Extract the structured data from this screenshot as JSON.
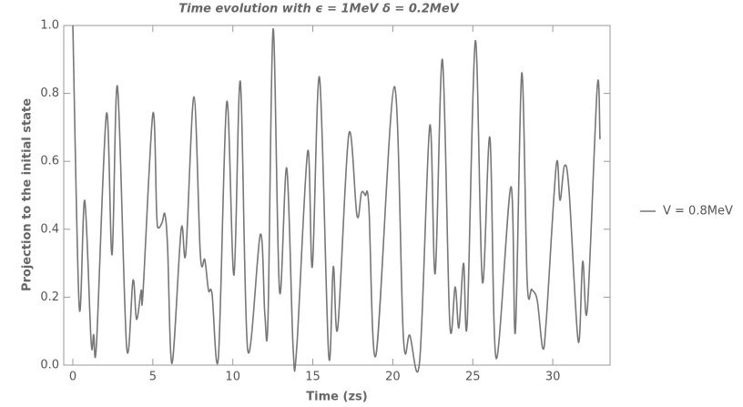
{
  "chart_data": {
    "type": "line",
    "title": "Time evolution with ϵ = 1MeV δ = 0.2MeV",
    "x_label": "Time (zs)",
    "y_label": "Projection to the initial state",
    "x": [
      0,
      0.4,
      0.74,
      1.14,
      1.3,
      1.48,
      2.1,
      2.45,
      2.79,
      3.36,
      3.76,
      3.98,
      4.27,
      4.38,
      5.0,
      5.24,
      5.35,
      5.58,
      5.75,
      5.92,
      6.2,
      6.77,
      7.06,
      7.57,
      7.97,
      8.25,
      8.48,
      8.7,
      9.1,
      9.62,
      10.07,
      10.47,
      10.93,
      11.72,
      12.0,
      12.2,
      12.52,
      12.92,
      13.37,
      13.77,
      14.0,
      14.68,
      14.97,
      15.42,
      15.99,
      16.28,
      16.56,
      17.25,
      17.76,
      18.04,
      18.27,
      18.5,
      18.95,
      20.09,
      20.66,
      21.06,
      21.68,
      22.31,
      22.65,
      23.1,
      23.56,
      23.9,
      24.13,
      24.42,
      24.65,
      25.16,
      25.6,
      26.07,
      26.46,
      27.38,
      27.66,
      28.06,
      28.4,
      28.69,
      29.03,
      29.37,
      29.6,
      30.22,
      30.45,
      30.73,
      31.02,
      31.59,
      31.87,
      32.16,
      32.78,
      32.95
    ],
    "series": [
      {
        "name": "V = 0.8MeV",
        "color": "#777777",
        "values": [
          1.0,
          0.17,
          0.485,
          0.07,
          0.09,
          0.065,
          0.74,
          0.325,
          0.82,
          0.055,
          0.25,
          0.135,
          0.22,
          0.21,
          0.74,
          0.445,
          0.405,
          0.42,
          0.445,
          0.35,
          0.005,
          0.4,
          0.33,
          0.79,
          0.325,
          0.31,
          0.22,
          0.21,
          0.025,
          0.775,
          0.265,
          0.835,
          0.045,
          0.385,
          0.15,
          0.14,
          0.99,
          0.217,
          0.58,
          0.048,
          0.055,
          0.63,
          0.29,
          0.847,
          0.03,
          0.29,
          0.11,
          0.68,
          0.44,
          0.507,
          0.5,
          0.47,
          0.03,
          0.82,
          0.083,
          0.088,
          0.013,
          0.705,
          0.27,
          0.9,
          0.125,
          0.23,
          0.11,
          0.3,
          0.125,
          0.955,
          0.245,
          0.67,
          0.02,
          0.525,
          0.097,
          0.86,
          0.245,
          0.223,
          0.19,
          0.05,
          0.137,
          0.59,
          0.485,
          0.587,
          0.512,
          0.07,
          0.305,
          0.165,
          0.82,
          0.665
        ]
      }
    ],
    "xlim": [
      -0.57,
      33.58
    ],
    "ylim": [
      0,
      1
    ],
    "xticks": [
      0,
      5,
      10,
      15,
      20,
      25,
      30
    ],
    "yticks": [
      {
        "value": 0,
        "label": "0.0"
      },
      0.2,
      0.4,
      0.6,
      0.8,
      {
        "value": 1,
        "label": "1.0"
      }
    ],
    "legend": "right"
  }
}
